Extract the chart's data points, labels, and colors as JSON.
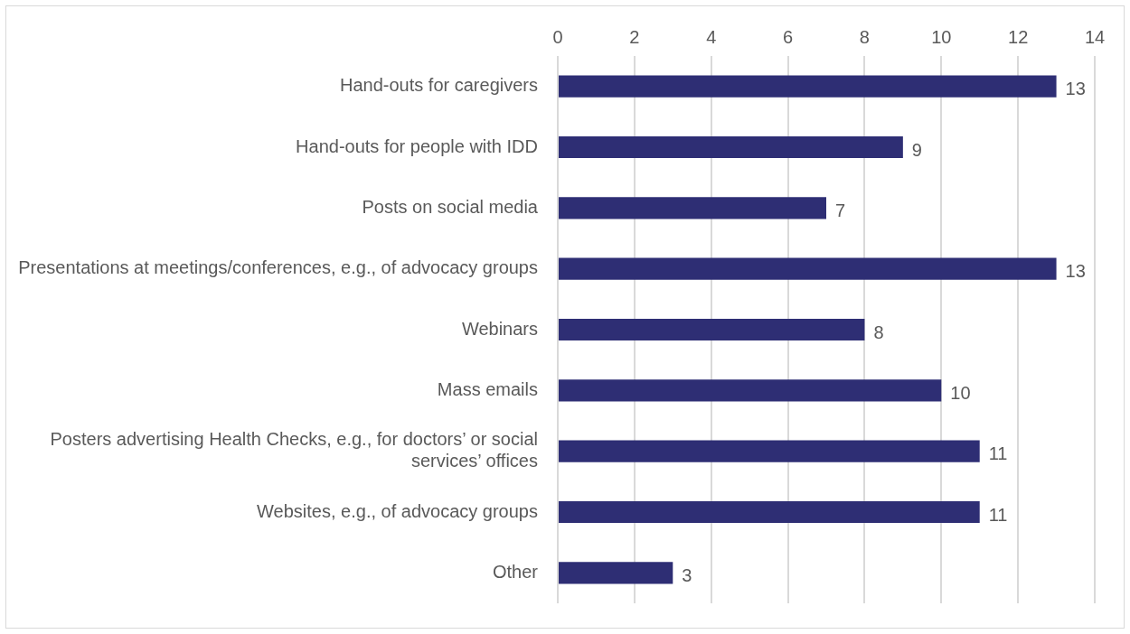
{
  "chart_data": {
    "type": "bar",
    "orientation": "horizontal",
    "categories": [
      "Hand-outs for caregivers",
      "Hand-outs for people with IDD",
      "Posts on social media",
      "Presentations at meetings/conferences, e.g., of advocacy groups",
      "Webinars",
      "Mass emails",
      "Posters advertising Health Checks, e.g., for doctors’ or social services’ offices",
      "Websites, e.g., of advocacy groups",
      "Other"
    ],
    "values": [
      13,
      9,
      7,
      13,
      8,
      10,
      11,
      11,
      3
    ],
    "color": "#2e2e74",
    "xlim": [
      0,
      14
    ],
    "xticks": [
      0,
      2,
      4,
      6,
      8,
      10,
      12,
      14
    ],
    "grid": "x",
    "legend": false,
    "data_labels": true
  }
}
